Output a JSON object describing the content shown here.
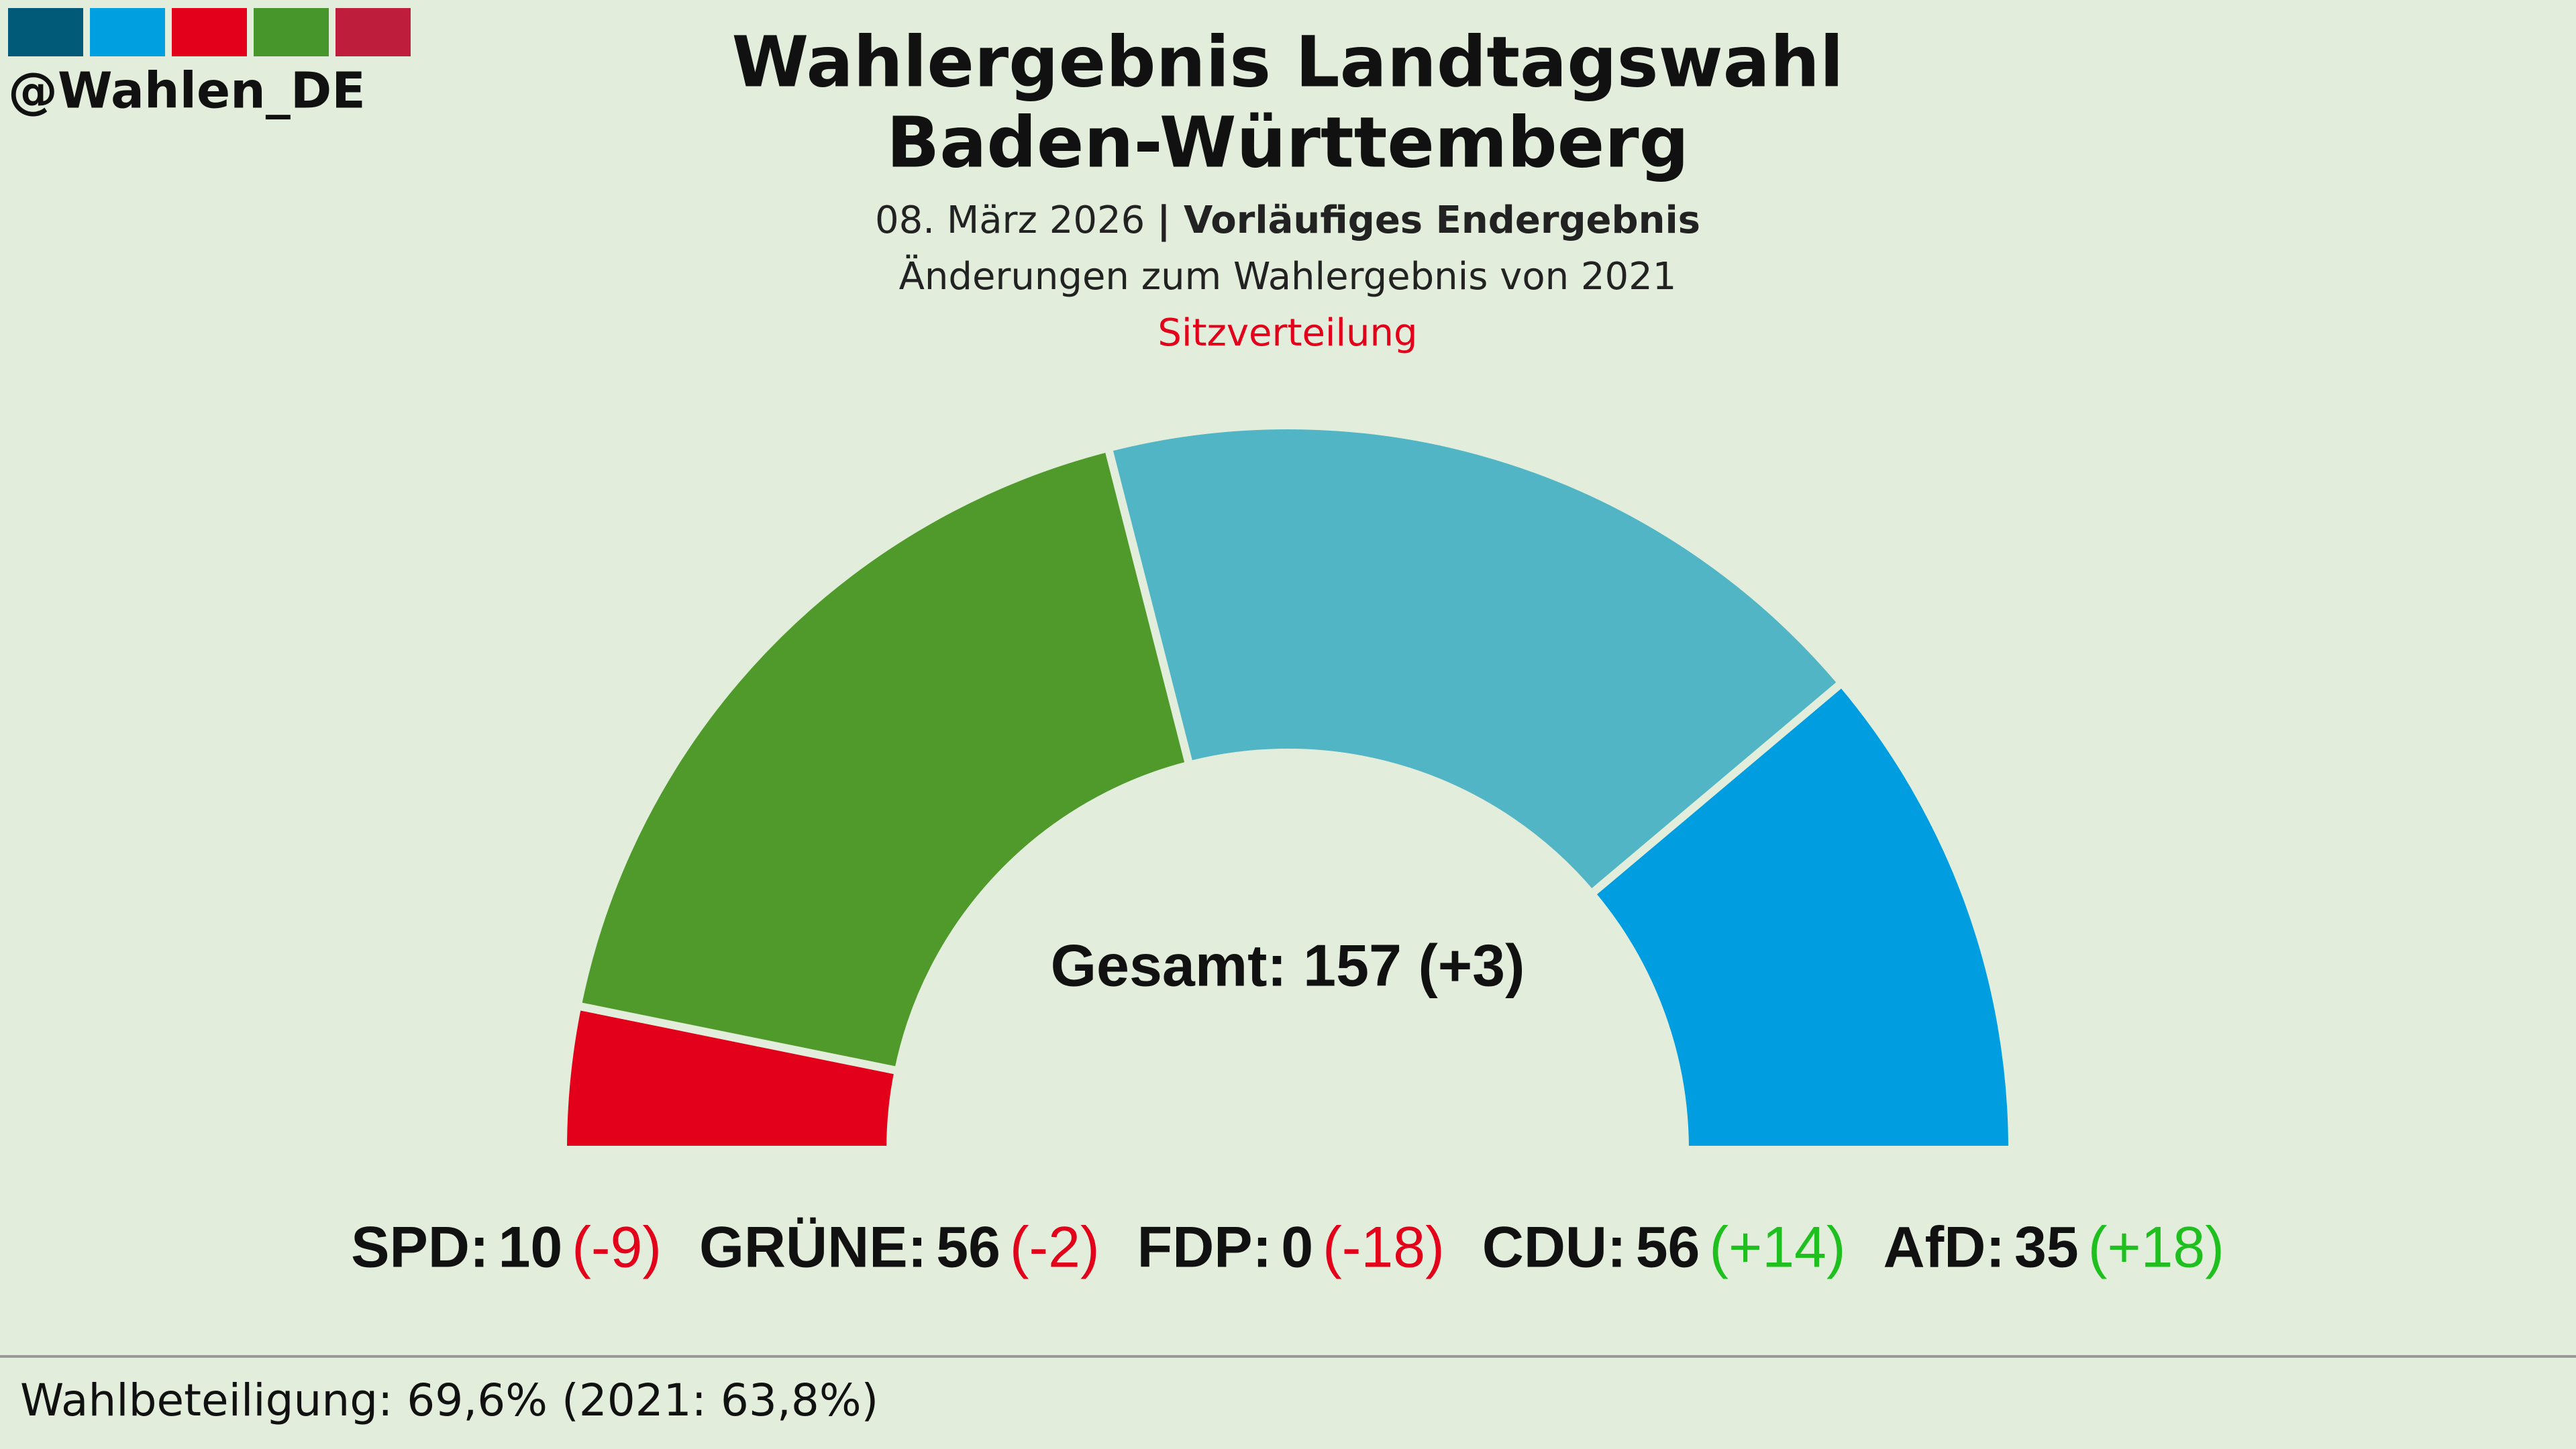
{
  "chart_data": {
    "type": "semicircle",
    "handle": "@Wahlen_DE",
    "title_lines": [
      "Wahlergebnis Landtagswahl",
      "Baden-Württemberg"
    ],
    "date": "08. März 2026",
    "status": "| Vorläufiges Endergebnis",
    "subtitle": "Änderungen zum Wahlergebnis von 2021",
    "chart_label": "Sitzverteilung",
    "total_label": "Gesamt: 157 (+3)",
    "categories": [
      "SPD:",
      "GRÜNE:",
      "FDP:",
      "CDU:",
      "AfD:"
    ],
    "values": [
      10,
      56,
      0,
      56,
      35
    ],
    "colors": [
      "#e2001a",
      "#509a2c",
      "#ffed00",
      "#52b5c5",
      "#009ee0"
    ],
    "changes": [
      -9,
      -2,
      -18,
      14,
      18
    ],
    "change_labels": [
      "(-9)",
      "(-2)",
      "(-18)",
      "(+14)",
      "(+18)"
    ],
    "negative_color": "#e2001a",
    "positive_color": "#1fbf1f",
    "footer": "Wahlbeteiligung: 69,6% (2021: 63,8%)"
  }
}
